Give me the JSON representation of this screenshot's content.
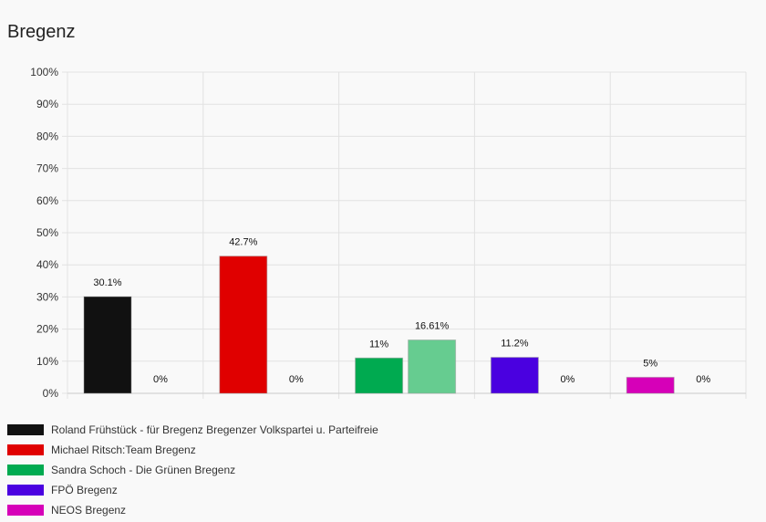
{
  "page": {
    "title": "Bregenz"
  },
  "chart_data": {
    "type": "bar",
    "title": "Bregenz",
    "ylim": [
      0,
      100
    ],
    "y_ticks": [
      "0%",
      "10%",
      "20%",
      "30%",
      "40%",
      "50%",
      "60%",
      "70%",
      "80%",
      "90%",
      "100%"
    ],
    "grid": true,
    "legend_position": "bottom",
    "categories": [
      "Roland Frühstück - für Bregenz Bregenzer Volkspartei u. Parteifreie",
      "Michael Ritsch:Team Bregenz",
      "Sandra Schoch - Die Grünen Bregenz",
      "FPÖ Bregenz",
      "NEOS Bregenz"
    ],
    "series": [
      {
        "values": [
          30.1,
          42.7,
          11,
          11.2,
          5
        ],
        "labels": [
          "30.1%",
          "42.7%",
          "11%",
          "11.2%",
          "5%"
        ]
      },
      {
        "values": [
          0,
          0,
          16.61,
          0,
          0
        ],
        "labels": [
          "0%",
          "0%",
          "16.61%",
          "0%",
          "0%"
        ]
      }
    ],
    "colors": {
      "primary": [
        "#111111",
        "#e00000",
        "#00aa50",
        "#4a00e0",
        "#d600b8"
      ],
      "secondary": [
        "#111111",
        "#e00000",
        "#66cc90",
        "#4a00e0",
        "#d600b8"
      ]
    }
  },
  "legend": [
    {
      "label": "Roland Frühstück - für Bregenz Bregenzer Volkspartei u. Parteifreie",
      "color": "#111111"
    },
    {
      "label": "Michael Ritsch:Team Bregenz",
      "color": "#e00000"
    },
    {
      "label": "Sandra Schoch - Die Grünen Bregenz",
      "color": "#00aa50"
    },
    {
      "label": "FPÖ Bregenz",
      "color": "#4a00e0"
    },
    {
      "label": "NEOS Bregenz",
      "color": "#d600b8"
    }
  ]
}
